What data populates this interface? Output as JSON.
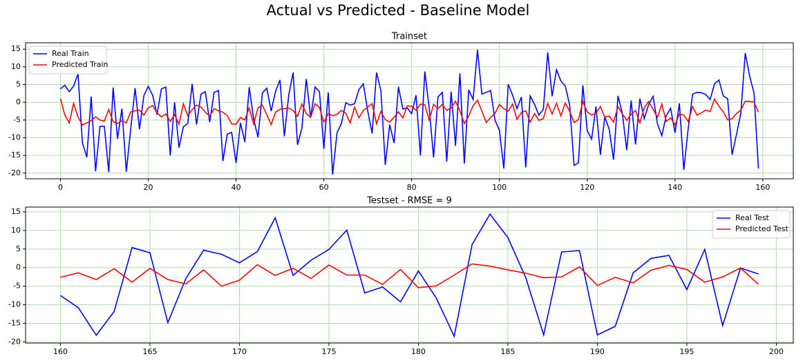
{
  "title": "Actual vs Predicted - Baseline Model",
  "chart_data": [
    {
      "type": "line",
      "title": "Trainset",
      "legend": "upper left",
      "grid": true,
      "x": [
        0,
        1,
        2,
        3,
        4,
        5,
        6,
        7,
        8,
        9,
        10,
        11,
        12,
        13,
        14,
        15,
        16,
        17,
        18,
        19,
        20,
        21,
        22,
        23,
        24,
        25,
        26,
        27,
        28,
        29,
        30,
        31,
        32,
        33,
        34,
        35,
        36,
        37,
        38,
        39,
        40,
        41,
        42,
        43,
        44,
        45,
        46,
        47,
        48,
        49,
        50,
        51,
        52,
        53,
        54,
        55,
        56,
        57,
        58,
        59,
        60,
        61,
        62,
        63,
        64,
        65,
        66,
        67,
        68,
        69,
        70,
        71,
        72,
        73,
        74,
        75,
        76,
        77,
        78,
        79,
        80,
        81,
        82,
        83,
        84,
        85,
        86,
        87,
        88,
        89,
        90,
        91,
        92,
        93,
        94,
        95,
        96,
        97,
        98,
        99,
        100,
        101,
        102,
        103,
        104,
        105,
        106,
        107,
        108,
        109,
        110,
        111,
        112,
        113,
        114,
        115,
        116,
        117,
        118,
        119,
        120,
        121,
        122,
        123,
        124,
        125,
        126,
        127,
        128,
        129,
        130,
        131,
        132,
        133,
        134,
        135,
        136,
        137,
        138,
        139,
        140,
        141,
        142,
        143,
        144,
        145,
        146,
        147,
        148,
        149,
        150,
        151,
        152,
        153,
        154,
        155,
        156,
        157,
        158,
        159
      ],
      "series": [
        {
          "name": "Real Train",
          "color": "#0000ff",
          "values": [
            3.8,
            4.8,
            3.0,
            4.6,
            8.0,
            -11.4,
            -15.5,
            1.6,
            -19.5,
            -6.8,
            -6.8,
            -19.7,
            4.2,
            -10.3,
            -1.8,
            -19.6,
            -7.5,
            4.0,
            -7.6,
            1.9,
            4.5,
            2.0,
            -3.5,
            3.8,
            4.3,
            -15.0,
            0.0,
            -12.8,
            -6.9,
            -6.0,
            5.2,
            -6.3,
            2.3,
            3.0,
            -5.6,
            2.8,
            3.3,
            -16.6,
            -9.0,
            -8.5,
            -17.1,
            -5.8,
            -11.2,
            4.3,
            -4.7,
            -9.9,
            2.6,
            4.0,
            -2.5,
            3.1,
            6.3,
            -9.6,
            2.0,
            8.4,
            -12.0,
            -7.3,
            6.6,
            -4.3,
            4.3,
            3.0,
            -13.1,
            2.8,
            -20.4,
            -8.6,
            -6.0,
            -0.1,
            -0.8,
            -0.4,
            3.6,
            5.2,
            -2.5,
            -8.8,
            8.4,
            3.3,
            -17.7,
            -6.3,
            -11.5,
            4.4,
            -1.9,
            -1.6,
            -3.2,
            2.0,
            -15.0,
            8.7,
            -1.6,
            -15.6,
            1.5,
            2.8,
            -16.8,
            3.0,
            -12.3,
            8.2,
            -17.3,
            3.5,
            0.8,
            14.8,
            2.3,
            2.8,
            3.3,
            -5.1,
            -7.9,
            -18.7,
            5.1,
            2.0,
            -1.8,
            1.5,
            -18.4,
            1.8,
            -0.6,
            -3.6,
            -2.0,
            14.1,
            1.7,
            9.2,
            6.0,
            4.6,
            -0.8,
            -17.8,
            -17.1,
            4.8,
            -8.0,
            -10.4,
            -1.2,
            -14.8,
            -4.1,
            -7.6,
            -16.2,
            1.8,
            -3.1,
            -13.5,
            0.5,
            -11.9,
            1.0,
            -4.6,
            -0.6,
            1.7,
            -6.1,
            -9.4,
            -3.8,
            -1.7,
            -8.6,
            -0.3,
            -19.1,
            -7.5,
            2.3,
            2.8,
            2.7,
            2.2,
            0.8,
            5.2,
            6.3,
            1.8,
            1.0,
            -14.8,
            -9.1,
            -3.0,
            13.9,
            7.4,
            2.6,
            -18.7
          ]
        },
        {
          "name": "Predicted Train",
          "color": "#ff0000",
          "values": [
            1.0,
            -3.6,
            -5.8,
            -0.3,
            -4.2,
            -6.4,
            -5.8,
            -5.2,
            -4.1,
            -5.0,
            -5.3,
            -2.0,
            -5.5,
            -6.0,
            -5.2,
            -5.8,
            -2.7,
            -2.4,
            -2.2,
            -3.6,
            -1.6,
            -0.9,
            -3.0,
            -4.1,
            -3.3,
            -5.4,
            -3.5,
            -6.2,
            -0.4,
            -3.8,
            -2.1,
            -0.8,
            -1.3,
            -2.8,
            -3.9,
            -1.8,
            -2.4,
            -2.8,
            -3.8,
            -6.1,
            -6.2,
            -4.3,
            -5.0,
            -1.6,
            -6.1,
            -1.6,
            -0.8,
            -3.5,
            -6.3,
            -2.8,
            -2.0,
            -1.8,
            -1.6,
            -2.3,
            -4.0,
            -0.5,
            -3.2,
            -4.2,
            -0.4,
            -1.5,
            -5.6,
            -3.2,
            -3.8,
            -3.4,
            -2.3,
            -3.1,
            -5.8,
            -1.4,
            -4.4,
            -2.3,
            -1.3,
            -0.4,
            -6.1,
            -2.6,
            -4.9,
            -5.6,
            -4.2,
            -2.7,
            -4.4,
            -1.0,
            -1.1,
            -2.3,
            -0.5,
            -0.7,
            -5.0,
            -0.6,
            -1.8,
            -0.6,
            -2.3,
            -1.6,
            0.3,
            -2.4,
            -6.0,
            -3.9,
            -1.0,
            0.6,
            -2.5,
            -5.7,
            -4.3,
            -3.1,
            -0.6,
            -1.8,
            -2.5,
            -0.5,
            -4.8,
            -2.9,
            -2.4,
            -5.6,
            -3.2,
            -5.1,
            -4.6,
            -0.3,
            -3.3,
            -0.3,
            -3.8,
            -0.2,
            -2.5,
            -5.7,
            -4.9,
            0.2,
            -2.7,
            -3.6,
            -3.1,
            -1.2,
            -4.2,
            -3.9,
            -5.6,
            -1.2,
            -3.3,
            -5.1,
            -3.4,
            -2.3,
            -5.8,
            -1.5,
            0.2,
            -2.0,
            -4.2,
            -0.5,
            -5.4,
            -4.4,
            -6.4,
            -3.3,
            -3.6,
            -5.4,
            -1.2,
            -3.6,
            -3.0,
            -2.2,
            -2.6,
            0.9,
            -1.1,
            -2.7,
            -5.0,
            -4.6,
            -3.2,
            -2.2,
            0.3,
            0.2,
            0.1,
            -2.8
          ]
        }
      ],
      "xlim": [
        -7.95,
        166.95
      ],
      "xticks": [
        0,
        20,
        40,
        60,
        80,
        100,
        120,
        140,
        160
      ],
      "ylim": [
        -21.6,
        16.8
      ],
      "yticks": [
        -20,
        -15,
        -10,
        -5,
        0,
        5,
        10,
        15
      ]
    },
    {
      "type": "line",
      "title": "Testset - RMSE =  9",
      "legend": "upper right",
      "grid": true,
      "x": [
        160,
        161,
        162,
        163,
        164,
        165,
        166,
        167,
        168,
        169,
        170,
        171,
        172,
        173,
        174,
        175,
        176,
        177,
        178,
        179,
        180,
        181,
        182,
        183,
        184,
        185,
        186,
        187,
        188,
        189,
        190,
        191,
        192,
        193,
        194,
        195,
        196,
        197,
        198,
        199
      ],
      "series": [
        {
          "name": "Real Test",
          "color": "#0000ff",
          "values": [
            -7.5,
            -10.8,
            -18.2,
            -11.8,
            5.4,
            4.0,
            -14.8,
            -3.0,
            4.7,
            3.6,
            1.3,
            4.3,
            13.4,
            -2.1,
            2.0,
            4.9,
            10.1,
            -6.8,
            -5.2,
            -9.2,
            -0.9,
            -8.2,
            -18.5,
            6.2,
            14.4,
            8.1,
            -2.7,
            -18.1,
            4.2,
            4.6,
            -18.1,
            -15.8,
            -1.4,
            2.5,
            3.3,
            -5.9,
            4.9,
            -15.6,
            -0.1,
            -1.7
          ]
        },
        {
          "name": "Predicted Test",
          "color": "#ff0000",
          "values": [
            -2.6,
            -1.4,
            -3.2,
            -0.3,
            -3.9,
            -0.2,
            -3.2,
            -4.4,
            -0.6,
            -5.0,
            -3.4,
            0.8,
            -2.1,
            -0.2,
            -2.9,
            0.7,
            -2.0,
            -2.0,
            -4.5,
            -0.5,
            -5.4,
            -4.9,
            -2.0,
            1.0,
            0.4,
            -0.6,
            -1.5,
            -2.7,
            -2.5,
            0.2,
            -4.8,
            -2.6,
            -4.1,
            -0.7,
            0.6,
            -0.5,
            -3.9,
            -2.5,
            -0.1,
            -4.5
          ]
        }
      ],
      "xlim": [
        158.05,
        200.95
      ],
      "xticks": [
        160,
        165,
        170,
        175,
        180,
        185,
        190,
        195,
        200
      ],
      "ylim": [
        -20.3,
        16.3
      ],
      "yticks": [
        -20,
        -15,
        -10,
        -5,
        0,
        5,
        10,
        15
      ]
    }
  ]
}
